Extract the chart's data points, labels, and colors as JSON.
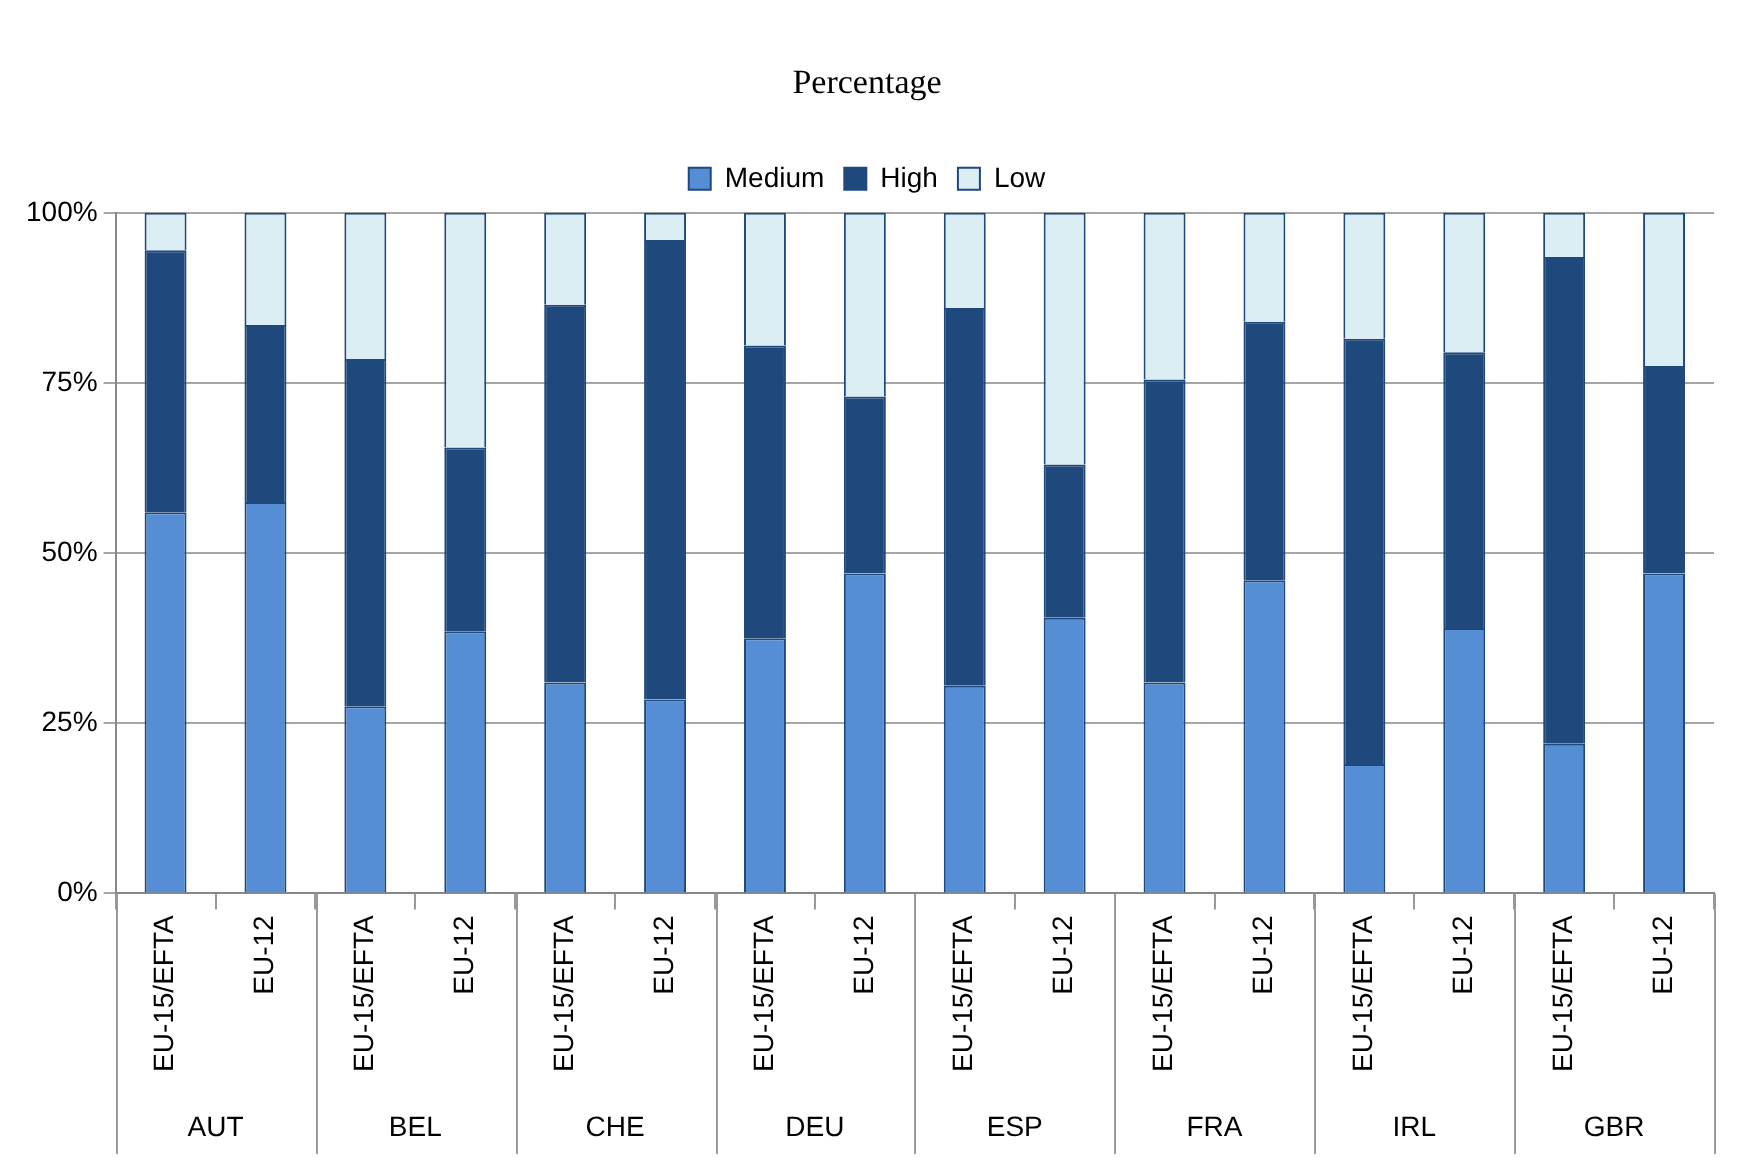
{
  "chart_data": {
    "type": "bar",
    "title": "Percentage",
    "stacked": true,
    "legend": "top",
    "grid": "y",
    "categories": [
      "EU-15/EFTA",
      "EU-12",
      "EU-15/EFTA",
      "EU-12",
      "EU-15/EFTA",
      "EU-12",
      "EU-15/EFTA",
      "EU-12",
      "EU-15/EFTA",
      "EU-12",
      "EU-15/EFTA",
      "EU-12",
      "EU-15/EFTA",
      "EU-12",
      "EU-15/EFTA",
      "EU-12"
    ],
    "annotations": [
      "AUT",
      "BEL",
      "CHE",
      "DEU",
      "ESP",
      "FRA",
      "IRL",
      "GBR"
    ],
    "ylim": [
      0,
      100
    ],
    "yticks": [
      {
        "value": 0,
        "label": "0%"
      },
      {
        "value": 25,
        "label": "25%"
      },
      {
        "value": 50,
        "label": "50%"
      },
      {
        "value": 75,
        "label": "75%"
      },
      {
        "value": 100,
        "label": "100%"
      }
    ],
    "series": [
      {
        "name": "Medium",
        "color": "#558ed5",
        "values": [
          56,
          57.5,
          27.5,
          38.5,
          31,
          28.5,
          37.5,
          47,
          30.5,
          40.5,
          31,
          46,
          19,
          39,
          22,
          47
        ]
      },
      {
        "name": "High",
        "color": "#1f497d",
        "values": [
          38.5,
          26,
          51,
          27,
          55.5,
          67.5,
          43,
          26,
          55.5,
          22.5,
          44.5,
          38,
          62.5,
          40.5,
          71.5,
          30.5
        ]
      },
      {
        "name": "Low",
        "color": "#dbeef4",
        "values": [
          5.5,
          16.5,
          21.5,
          34.5,
          13.5,
          4,
          19.5,
          27,
          14,
          37,
          24.5,
          16,
          18.5,
          20.5,
          6.5,
          22.5
        ]
      }
    ]
  }
}
